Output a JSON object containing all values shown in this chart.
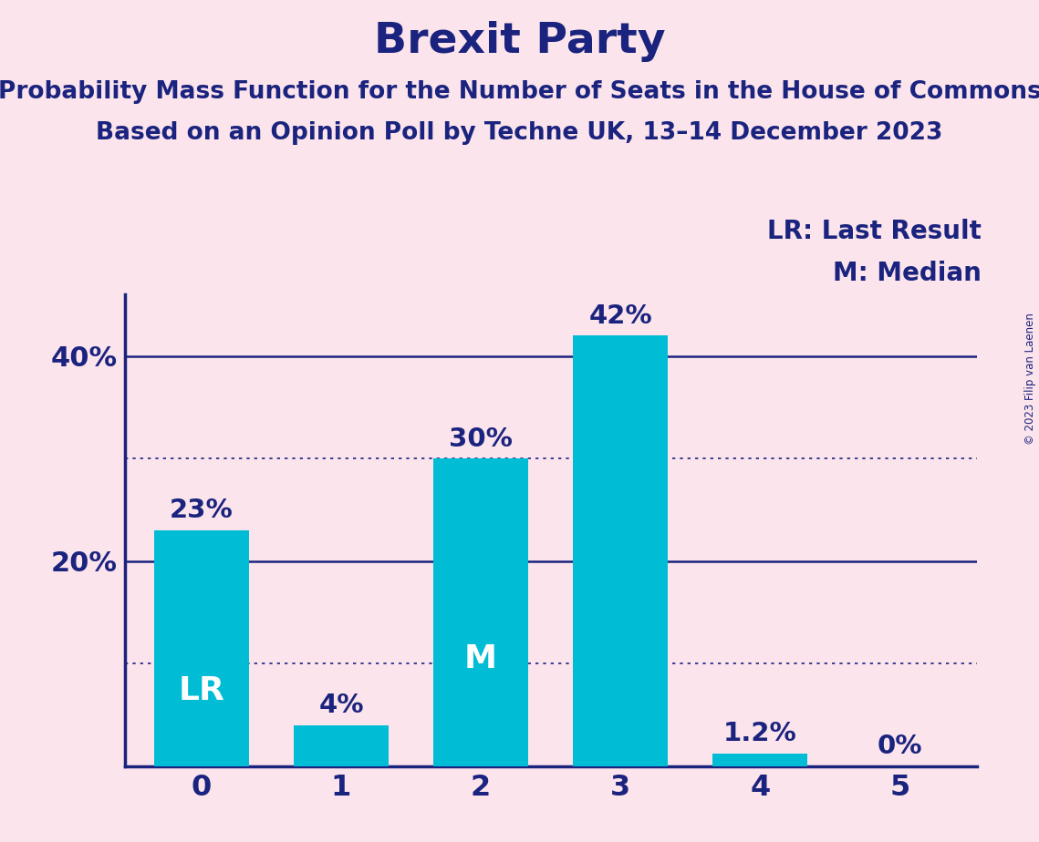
{
  "title": "Brexit Party",
  "subtitle1": "Probability Mass Function for the Number of Seats in the House of Commons",
  "subtitle2": "Based on an Opinion Poll by Techne UK, 13–14 December 2023",
  "copyright": "© 2023 Filip van Laenen",
  "categories": [
    0,
    1,
    2,
    3,
    4,
    5
  ],
  "values": [
    23,
    4,
    30,
    42,
    1.2,
    0
  ],
  "bar_labels": [
    "23%",
    "4%",
    "30%",
    "42%",
    "1.2%",
    "0%"
  ],
  "bar_color": "#00bcd4",
  "background_color": "#fce4ec",
  "text_color": "#1a237e",
  "lr_bar_index": 0,
  "median_bar_index": 2,
  "lr_label": "LR",
  "median_label": "M",
  "legend_lr": "LR: Last Result",
  "legend_m": "M: Median",
  "ylim": [
    0,
    46
  ],
  "yticks": [
    20,
    40
  ],
  "ytick_labels": [
    "20%",
    "40%"
  ],
  "solid_hlines": [
    20,
    40
  ],
  "dotted_hlines": [
    10,
    30
  ],
  "hline_solid_color": "#1a237e",
  "hline_dotted_color": "#1a237e",
  "title_fontsize": 34,
  "subtitle_fontsize": 19,
  "bar_label_fontsize": 21,
  "inside_label_fontsize": 26,
  "legend_fontsize": 20,
  "ytick_fontsize": 22,
  "xtick_fontsize": 23,
  "bar_width": 0.68,
  "xlim": [
    -0.55,
    5.55
  ]
}
